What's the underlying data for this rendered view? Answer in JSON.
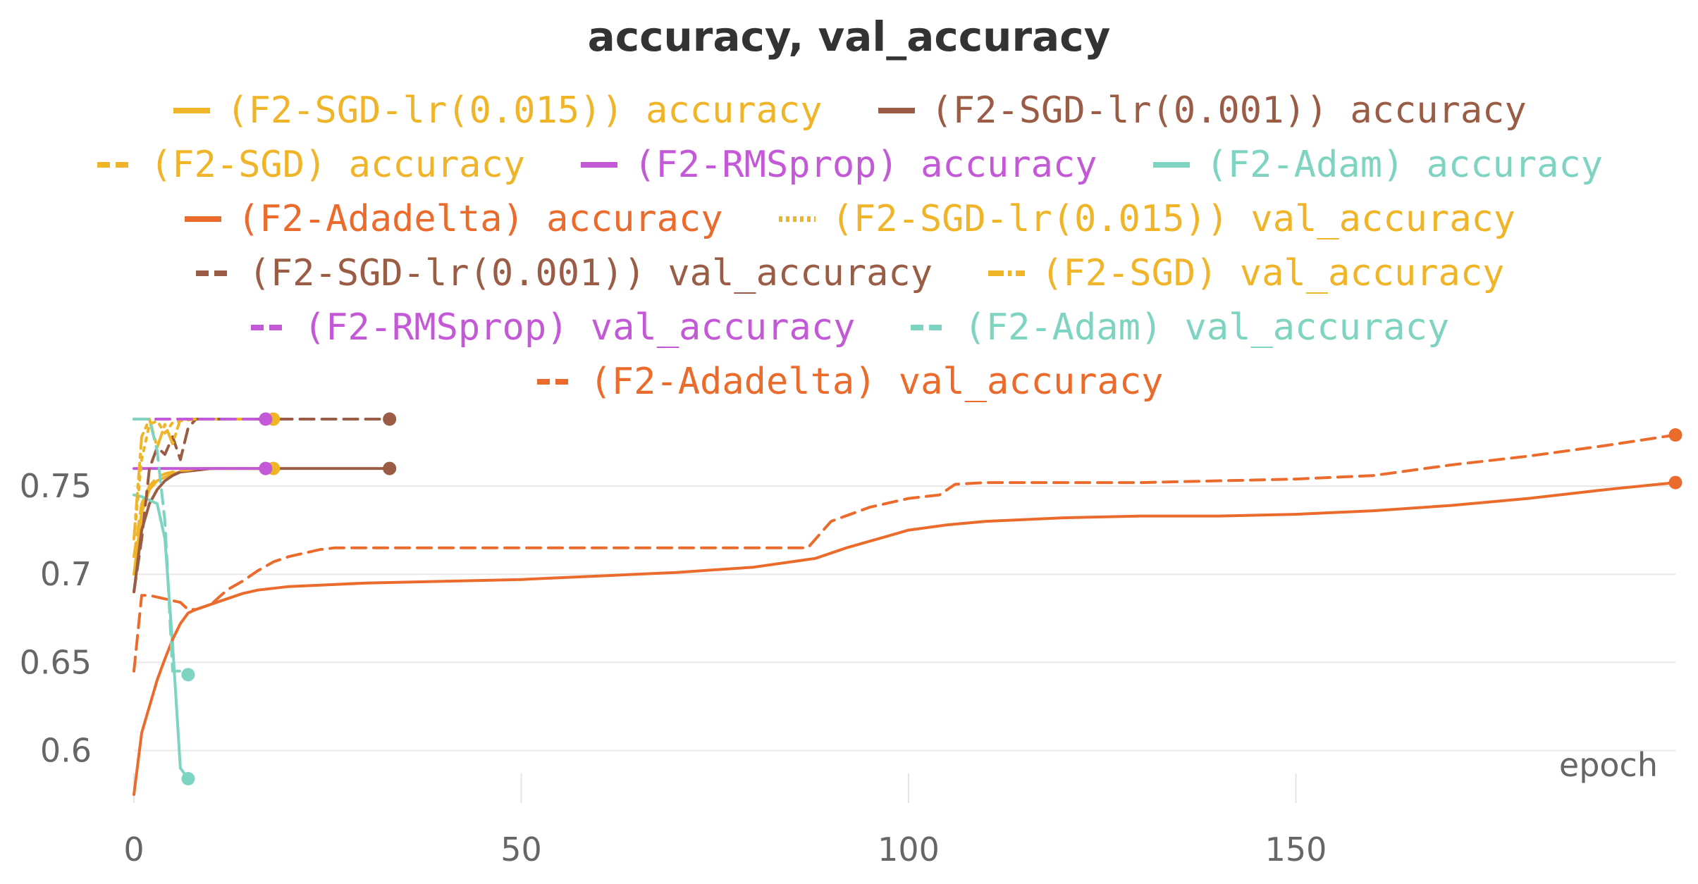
{
  "chart_data": {
    "type": "line",
    "title": "accuracy, val_accuracy",
    "xlabel": "epoch",
    "ylabel": "",
    "xlim": [
      0,
      199
    ],
    "ylim": [
      0.573,
      0.79
    ],
    "xticks": [
      0,
      50,
      100,
      150
    ],
    "yticks": [
      0.6,
      0.65,
      0.7,
      0.75
    ],
    "xtick_labels": [
      "0",
      "50",
      "100",
      "150"
    ],
    "ytick_labels": [
      "0.6",
      "0.65",
      "0.7",
      "0.75"
    ],
    "grid": true,
    "legend_position": "top",
    "series": [
      {
        "name": "(F2-SGD-lr(0.015)) accuracy",
        "color": "#f0b429",
        "dash": "solid",
        "x": [
          0,
          1,
          2,
          3,
          4,
          5,
          6,
          7,
          8,
          10,
          12,
          14,
          16,
          18
        ],
        "y": [
          0.7,
          0.735,
          0.748,
          0.753,
          0.755,
          0.757,
          0.758,
          0.759,
          0.76,
          0.76,
          0.76,
          0.76,
          0.76,
          0.76
        ]
      },
      {
        "name": "(F2-SGD-lr(0.001)) accuracy",
        "color": "#9a5c44",
        "dash": "solid",
        "x": [
          0,
          1,
          2,
          3,
          4,
          5,
          6,
          8,
          10,
          15,
          20,
          25,
          30,
          33
        ],
        "y": [
          0.69,
          0.725,
          0.74,
          0.748,
          0.753,
          0.756,
          0.758,
          0.759,
          0.76,
          0.76,
          0.76,
          0.76,
          0.76,
          0.76
        ]
      },
      {
        "name": "(F2-SGD) accuracy",
        "color": "#f0b429",
        "dash": "dash",
        "x": [
          0,
          1,
          2,
          3,
          4,
          5,
          6,
          7,
          8,
          10,
          12,
          14,
          16,
          18
        ],
        "y": [
          0.71,
          0.74,
          0.75,
          0.755,
          0.757,
          0.758,
          0.759,
          0.759,
          0.76,
          0.76,
          0.76,
          0.76,
          0.76,
          0.76
        ]
      },
      {
        "name": "(F2-RMSprop) accuracy",
        "color": "#c359d6",
        "dash": "solid",
        "x": [
          0,
          1,
          2,
          3,
          4,
          6,
          8,
          10,
          12,
          14,
          16,
          17
        ],
        "y": [
          0.76,
          0.76,
          0.76,
          0.76,
          0.76,
          0.76,
          0.76,
          0.76,
          0.76,
          0.76,
          0.76,
          0.76
        ]
      },
      {
        "name": "(F2-Adam) accuracy",
        "color": "#7ed3c1",
        "dash": "solid",
        "x": [
          0,
          1,
          2,
          3,
          4,
          5,
          6,
          7
        ],
        "y": [
          0.745,
          0.744,
          0.742,
          0.74,
          0.72,
          0.66,
          0.59,
          0.584
        ]
      },
      {
        "name": "(F2-Adadelta) accuracy",
        "color": "#eb6b2c",
        "dash": "solid",
        "x": [
          0,
          1,
          2,
          3,
          4,
          5,
          6,
          7,
          8,
          10,
          12,
          14,
          16,
          18,
          20,
          25,
          30,
          40,
          50,
          60,
          70,
          80,
          88,
          92,
          96,
          100,
          105,
          110,
          115,
          120,
          130,
          140,
          150,
          160,
          170,
          180,
          190,
          199
        ],
        "y": [
          0.575,
          0.61,
          0.625,
          0.64,
          0.652,
          0.663,
          0.672,
          0.678,
          0.68,
          0.683,
          0.686,
          0.689,
          0.691,
          0.692,
          0.693,
          0.694,
          0.695,
          0.696,
          0.697,
          0.699,
          0.701,
          0.704,
          0.709,
          0.715,
          0.72,
          0.725,
          0.728,
          0.73,
          0.731,
          0.732,
          0.733,
          0.733,
          0.734,
          0.736,
          0.739,
          0.743,
          0.748,
          0.752
        ]
      },
      {
        "name": "(F2-SGD-lr(0.015)) val_accuracy",
        "color": "#f0b429",
        "dash": "dot",
        "x": [
          0,
          1,
          2,
          3,
          4,
          5,
          6,
          8,
          10,
          12,
          14,
          16,
          18
        ],
        "y": [
          0.72,
          0.765,
          0.785,
          0.787,
          0.78,
          0.786,
          0.787,
          0.788,
          0.788,
          0.788,
          0.788,
          0.788,
          0.788
        ]
      },
      {
        "name": "(F2-SGD-lr(0.001)) val_accuracy",
        "color": "#9a5c44",
        "dash": "dash",
        "x": [
          0,
          1,
          2,
          3,
          4,
          5,
          6,
          7,
          8,
          10,
          15,
          20,
          25,
          30,
          33
        ],
        "y": [
          0.69,
          0.72,
          0.76,
          0.772,
          0.768,
          0.778,
          0.765,
          0.783,
          0.788,
          0.788,
          0.788,
          0.788,
          0.788,
          0.788,
          0.788
        ]
      },
      {
        "name": "(F2-SGD) val_accuracy",
        "color": "#f0b429",
        "dash": "dashdot",
        "x": [
          0,
          1,
          2,
          3,
          4,
          5,
          6,
          7,
          8,
          10,
          12,
          14,
          16,
          18
        ],
        "y": [
          0.72,
          0.778,
          0.788,
          0.772,
          0.785,
          0.774,
          0.788,
          0.788,
          0.788,
          0.788,
          0.788,
          0.788,
          0.788,
          0.788
        ]
      },
      {
        "name": "(F2-RMSprop) val_accuracy",
        "color": "#c359d6",
        "dash": "dash",
        "x": [
          0,
          1,
          2,
          3,
          4,
          6,
          8,
          10,
          12,
          14,
          16,
          17
        ],
        "y": [
          0.788,
          0.788,
          0.788,
          0.788,
          0.788,
          0.788,
          0.788,
          0.788,
          0.788,
          0.788,
          0.788,
          0.788
        ]
      },
      {
        "name": "(F2-Adam) val_accuracy",
        "color": "#7ed3c1",
        "dash": "dash",
        "x": [
          0,
          1,
          2,
          3,
          4,
          5,
          6,
          7
        ],
        "y": [
          0.788,
          0.788,
          0.788,
          0.77,
          0.73,
          0.645,
          0.645,
          0.643
        ]
      },
      {
        "name": "(F2-Adadelta) val_accuracy",
        "color": "#eb6b2c",
        "dash": "dash",
        "x": [
          0,
          1,
          2,
          4,
          6,
          7,
          8,
          10,
          12,
          14,
          16,
          18,
          20,
          22,
          24,
          26,
          30,
          40,
          50,
          60,
          70,
          80,
          87,
          90,
          95,
          100,
          104,
          106,
          110,
          130,
          150,
          160,
          170,
          180,
          190,
          199
        ],
        "y": [
          0.645,
          0.688,
          0.688,
          0.686,
          0.684,
          0.68,
          0.68,
          0.683,
          0.691,
          0.696,
          0.702,
          0.707,
          0.71,
          0.712,
          0.714,
          0.715,
          0.715,
          0.715,
          0.715,
          0.715,
          0.715,
          0.715,
          0.715,
          0.73,
          0.738,
          0.743,
          0.745,
          0.751,
          0.752,
          0.752,
          0.754,
          0.756,
          0.762,
          0.767,
          0.773,
          0.779
        ]
      }
    ],
    "endpoint_markers": [
      {
        "color": "#9a5c44",
        "x": 33,
        "y": 0.788
      },
      {
        "color": "#9a5c44",
        "x": 33,
        "y": 0.76
      },
      {
        "color": "#f0b429",
        "x": 18,
        "y": 0.788
      },
      {
        "color": "#f0b429",
        "x": 18,
        "y": 0.76
      },
      {
        "color": "#c359d6",
        "x": 17,
        "y": 0.788
      },
      {
        "color": "#c359d6",
        "x": 17,
        "y": 0.76
      },
      {
        "color": "#7ed3c1",
        "x": 7,
        "y": 0.643
      },
      {
        "color": "#7ed3c1",
        "x": 7,
        "y": 0.584
      },
      {
        "color": "#eb6b2c",
        "x": 199,
        "y": 0.779
      },
      {
        "color": "#eb6b2c",
        "x": 199,
        "y": 0.752
      }
    ]
  },
  "legend": {
    "rows": [
      [
        0,
        1
      ],
      [
        2,
        3,
        4
      ],
      [
        5,
        6
      ],
      [
        7,
        8
      ],
      [
        9,
        10
      ],
      [
        11
      ]
    ]
  }
}
